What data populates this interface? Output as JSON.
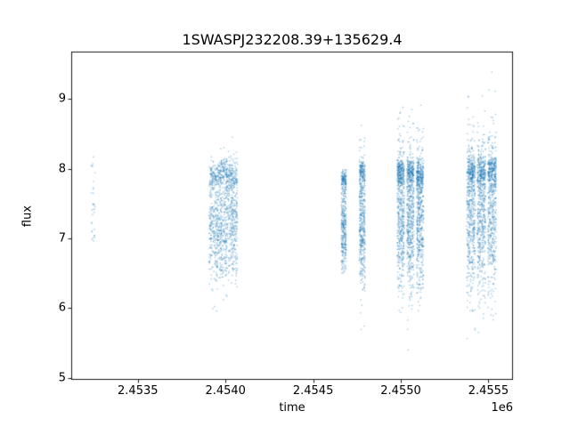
{
  "title": "1SWASPJ232208.39+135629.4",
  "axes": {
    "xlabel": "time",
    "ylabel": "flux",
    "offset_text": "1e6",
    "xlim": [
      2453120,
      2455640
    ],
    "ylim": [
      4.97,
      9.68
    ],
    "x_ticks": [
      {
        "value": 2453500,
        "label": "2.4535"
      },
      {
        "value": 2454000,
        "label": "2.4540"
      },
      {
        "value": 2454500,
        "label": "2.4545"
      },
      {
        "value": 2455000,
        "label": "2.4550"
      },
      {
        "value": 2455500,
        "label": "2.4555"
      }
    ],
    "y_ticks": [
      {
        "value": 5,
        "label": "5"
      },
      {
        "value": 6,
        "label": "6"
      },
      {
        "value": 7,
        "label": "7"
      },
      {
        "value": 8,
        "label": "8"
      },
      {
        "value": 9,
        "label": "9"
      }
    ]
  },
  "chart_data": {
    "type": "scatter",
    "title": "1SWASPJ232208.39+135629.4",
    "xlabel": "time",
    "ylabel": "flux",
    "x_offset_factor": 1000000,
    "xlim": [
      2453120,
      2455640
    ],
    "ylim": [
      4.97,
      9.68
    ],
    "grid": false,
    "legend": false,
    "marker_color": "#1f77b4",
    "marker_alpha": 0.4,
    "marker_size": 1.4,
    "seed": 20231122,
    "clusters": [
      {
        "t": 2453245,
        "half_width": 12,
        "n": 32,
        "flux_mean": 7.2,
        "flux_sigma": 0.5,
        "flux_min": 6.75,
        "flux_max": 8.8,
        "band_frac": 0.1,
        "band_mean": 8.0,
        "band_sigma": 0.15
      },
      {
        "t": 2453925,
        "half_width": 18,
        "n": 250,
        "flux_mean": 7.15,
        "flux_sigma": 0.4,
        "flux_min": 5.9,
        "flux_max": 8.8,
        "band_frac": 0.3,
        "band_mean": 7.9,
        "band_sigma": 0.1
      },
      {
        "t": 2453958,
        "half_width": 18,
        "n": 270,
        "flux_mean": 7.1,
        "flux_sigma": 0.4,
        "flux_min": 5.9,
        "flux_max": 8.8,
        "band_frac": 0.3,
        "band_mean": 7.9,
        "band_sigma": 0.1
      },
      {
        "t": 2453990,
        "half_width": 18,
        "n": 270,
        "flux_mean": 7.2,
        "flux_sigma": 0.42,
        "flux_min": 5.9,
        "flux_max": 8.8,
        "band_frac": 0.3,
        "band_mean": 7.95,
        "band_sigma": 0.1
      },
      {
        "t": 2454022,
        "half_width": 18,
        "n": 260,
        "flux_mean": 7.25,
        "flux_sigma": 0.4,
        "flux_min": 5.9,
        "flux_max": 8.6,
        "band_frac": 0.28,
        "band_mean": 7.9,
        "band_sigma": 0.1
      },
      {
        "t": 2454052,
        "half_width": 16,
        "n": 250,
        "flux_mean": 7.2,
        "flux_sigma": 0.4,
        "flux_min": 6.2,
        "flux_max": 8.3,
        "band_frac": 0.25,
        "band_mean": 7.9,
        "band_sigma": 0.1
      },
      {
        "t": 2454675,
        "half_width": 14,
        "n": 450,
        "flux_mean": 7.15,
        "flux_sigma": 0.35,
        "flux_min": 6.45,
        "flux_max": 8.0,
        "band_frac": 0.3,
        "band_mean": 7.85,
        "band_sigma": 0.08
      },
      {
        "t": 2454780,
        "half_width": 16,
        "n": 550,
        "flux_mean": 7.2,
        "flux_sigma": 0.5,
        "flux_min": 5.4,
        "flux_max": 8.9,
        "band_frac": 0.25,
        "band_mean": 7.95,
        "band_sigma": 0.1
      },
      {
        "t": 2455000,
        "half_width": 20,
        "n": 650,
        "flux_mean": 7.3,
        "flux_sigma": 0.55,
        "flux_min": 5.35,
        "flux_max": 9.2,
        "band_frac": 0.3,
        "band_mean": 7.95,
        "band_sigma": 0.1
      },
      {
        "t": 2455055,
        "half_width": 20,
        "n": 650,
        "flux_mean": 7.3,
        "flux_sigma": 0.55,
        "flux_min": 5.3,
        "flux_max": 9.15,
        "band_frac": 0.3,
        "band_mean": 7.95,
        "band_sigma": 0.1
      },
      {
        "t": 2455110,
        "half_width": 20,
        "n": 650,
        "flux_mean": 7.25,
        "flux_sigma": 0.55,
        "flux_min": 5.4,
        "flux_max": 9.0,
        "band_frac": 0.3,
        "band_mean": 7.9,
        "band_sigma": 0.1
      },
      {
        "t": 2455400,
        "half_width": 24,
        "n": 650,
        "flux_mean": 7.3,
        "flux_sigma": 0.6,
        "flux_min": 5.3,
        "flux_max": 9.5,
        "band_frac": 0.3,
        "band_mean": 7.95,
        "band_sigma": 0.12
      },
      {
        "t": 2455460,
        "half_width": 24,
        "n": 650,
        "flux_mean": 7.3,
        "flux_sigma": 0.6,
        "flux_min": 5.25,
        "flux_max": 9.4,
        "band_frac": 0.3,
        "band_mean": 7.95,
        "band_sigma": 0.12
      },
      {
        "t": 2455520,
        "half_width": 24,
        "n": 650,
        "flux_mean": 7.3,
        "flux_sigma": 0.6,
        "flux_min": 5.3,
        "flux_max": 9.5,
        "band_frac": 0.3,
        "band_mean": 7.95,
        "band_sigma": 0.12
      }
    ]
  }
}
